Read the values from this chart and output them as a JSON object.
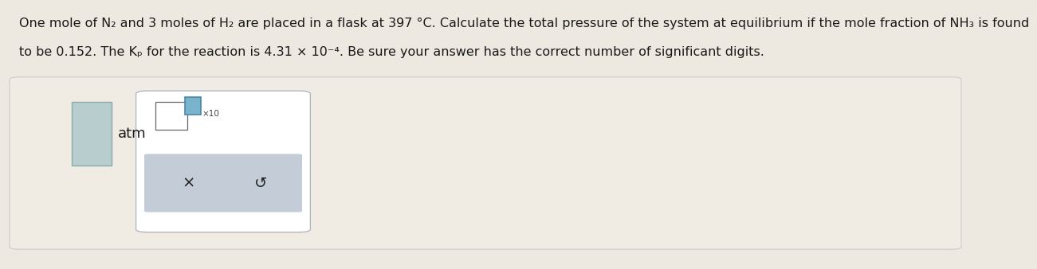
{
  "background_color": "#ede8e0",
  "panel_color": "#ede8e0",
  "panel_border": "#c8c8c8",
  "line1": "One mole of N₂ and 3 moles of H₂ are placed in a flask at 397 °C. Calculate the total pressure of the system at equilibrium if the mole fraction of NH₃ is found",
  "line2": "to be 0.152. The Kₚ for the reaction is 4.31 × 10⁻⁴. Be sure your answer has the correct number of significant digits.",
  "unit_label": "atm",
  "input_box1_face": "#b8cece",
  "input_box1_edge": "#8aabab",
  "box2_face": "#ffffff",
  "box2_edge": "#b0b8c0",
  "small_box_face": "#ffffff",
  "small_box_edge": "#666666",
  "blue_box_face": "#7ab4cc",
  "blue_box_edge": "#4488aa",
  "button_bar_face": "#c4ccd8",
  "x_symbol": "×",
  "reset_symbol": "↺",
  "x10_text": "×10",
  "text_color": "#1a1a1a",
  "font_size_main": 11.5,
  "font_size_ui": 12
}
